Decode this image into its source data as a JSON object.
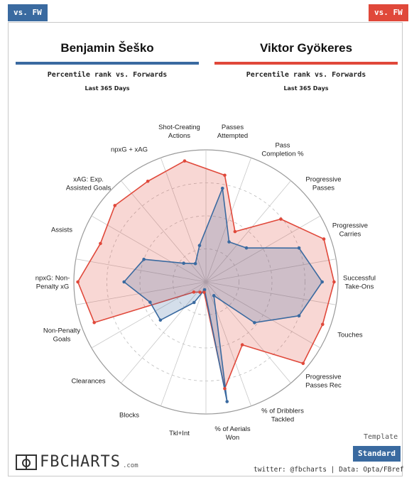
{
  "header": {
    "left_tag": "vs. FW",
    "right_tag": "vs. FW"
  },
  "players": {
    "p1": {
      "name": "Benjamin Šeško",
      "subtitle": "Percentile rank vs. Forwards",
      "period": "Last 365 Days",
      "color": "#3a6aa0"
    },
    "p2": {
      "name": "Viktor Gyökeres",
      "subtitle": "Percentile rank vs. Forwards",
      "period": "Last 365 Days",
      "color": "#e0483a"
    }
  },
  "chart_data": {
    "type": "radar",
    "range": [
      0,
      100
    ],
    "axes": [
      "Passes\nAttempted",
      "Pass\nCompletion %",
      "Progressive\nPasses",
      "Progressive\nCarries",
      "Successful\nTake-Ons",
      "Touches",
      "Progressive\nPasses Rec",
      "% of Dribblers\nTackled",
      "% of Aerials\nWon",
      "Tkl+Int",
      "Blocks",
      "Clearances",
      "Non-Penalty\nGoals",
      "npxG: Non-\nPenalty xG",
      "Assists",
      "xAG: Exp.\nAssisted Goals",
      "npxG + xAG",
      "Shot-Creating\nActions"
    ],
    "series": [
      {
        "name": "Benjamin Šeško",
        "color": "#3a6aa0",
        "values": [
          72,
          35,
          40,
          75,
          88,
          75,
          48,
          12,
          92,
          6,
          18,
          45,
          45,
          62,
          50,
          22,
          16,
          28
        ]
      },
      {
        "name": "Viktor Gyökeres",
        "color": "#e0483a",
        "values": [
          82,
          44,
          74,
          95,
          97,
          94,
          96,
          55,
          82,
          8,
          9,
          12,
          90,
          97,
          85,
          90,
          88,
          93
        ]
      }
    ]
  },
  "footer": {
    "logo_text": "FBCHARTS",
    "logo_domain": ".com",
    "template_label": "Template",
    "template_button": "Standard",
    "credits": "twitter: @fbcharts | Data: Opta/FBref"
  }
}
